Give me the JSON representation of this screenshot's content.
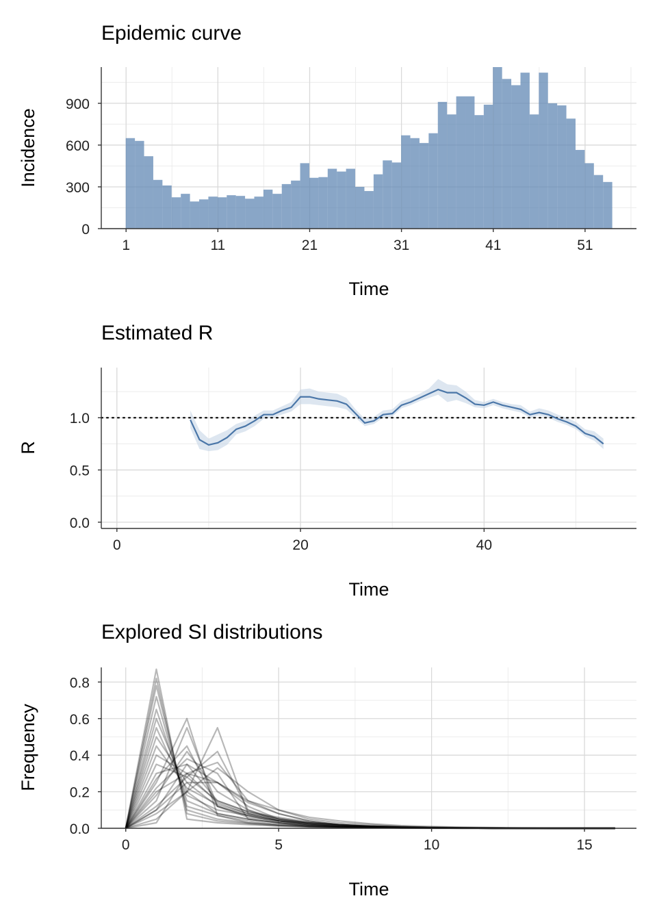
{
  "chart_data": [
    {
      "type": "bar",
      "title": "Epidemic curve",
      "xlabel": "Time",
      "ylabel": "Incidence",
      "x_ticks": [
        "1",
        "11",
        "21",
        "31",
        "41",
        "51"
      ],
      "y_ticks": [
        "0",
        "300",
        "600",
        "900"
      ],
      "ylim": [
        0,
        1160
      ],
      "xlim": [
        -1.7,
        56.6
      ],
      "bar_color": "#5b84b1",
      "x": [
        1,
        2,
        3,
        4,
        5,
        6,
        7,
        8,
        9,
        10,
        11,
        12,
        13,
        14,
        15,
        16,
        17,
        18,
        19,
        20,
        21,
        22,
        23,
        24,
        25,
        26,
        27,
        28,
        29,
        30,
        31,
        32,
        33,
        34,
        35,
        36,
        37,
        38,
        39,
        40,
        41,
        42,
        43,
        44,
        45,
        46,
        47,
        48,
        49,
        50,
        51,
        52,
        53,
        54
      ],
      "values": [
        650,
        630,
        520,
        350,
        310,
        225,
        250,
        195,
        210,
        230,
        225,
        240,
        235,
        215,
        230,
        280,
        250,
        320,
        345,
        470,
        365,
        370,
        430,
        410,
        430,
        300,
        270,
        390,
        490,
        475,
        670,
        650,
        615,
        685,
        910,
        820,
        950,
        950,
        815,
        890,
        1165,
        1075,
        1030,
        1120,
        820,
        1120,
        900,
        885,
        790,
        565,
        470,
        385,
        335,
        0
      ]
    },
    {
      "type": "line",
      "title": "Estimated R",
      "xlabel": "Time",
      "ylabel": "R",
      "x_ticks": [
        "0",
        "20",
        "40"
      ],
      "y_ticks": [
        "0.0",
        "0.5",
        "1.0"
      ],
      "xlim": [
        -1.7,
        56.6
      ],
      "ylim": [
        -0.06,
        1.48
      ],
      "reference_line": 1.0,
      "line_color": "#4a76a8",
      "band_color": "#c7d6e6",
      "series": [
        {
          "x": [
            8,
            9,
            10,
            11,
            12,
            13,
            14,
            15,
            16,
            17,
            18,
            19,
            20,
            21,
            22,
            23,
            24,
            25,
            26,
            27,
            28,
            29,
            30,
            31,
            32,
            33,
            34,
            35,
            36,
            37,
            38,
            39,
            40,
            41,
            42,
            43,
            44,
            45,
            46,
            47,
            48,
            49,
            50,
            51,
            52,
            53
          ],
          "mean": [
            0.98,
            0.79,
            0.74,
            0.76,
            0.81,
            0.89,
            0.92,
            0.97,
            1.03,
            1.03,
            1.07,
            1.1,
            1.2,
            1.2,
            1.18,
            1.17,
            1.16,
            1.13,
            1.04,
            0.95,
            0.97,
            1.03,
            1.04,
            1.12,
            1.15,
            1.19,
            1.23,
            1.27,
            1.24,
            1.24,
            1.19,
            1.13,
            1.12,
            1.15,
            1.12,
            1.1,
            1.08,
            1.03,
            1.05,
            1.03,
            0.99,
            0.96,
            0.92,
            0.85,
            0.82,
            0.75
          ],
          "lower": [
            0.9,
            0.7,
            0.68,
            0.69,
            0.74,
            0.84,
            0.87,
            0.92,
            0.99,
            1.0,
            1.03,
            1.06,
            1.13,
            1.13,
            1.12,
            1.11,
            1.1,
            1.08,
            1.0,
            0.92,
            0.94,
            1.0,
            1.01,
            1.09,
            1.12,
            1.16,
            1.19,
            1.22,
            1.15,
            1.17,
            1.14,
            1.1,
            1.09,
            1.12,
            1.09,
            1.07,
            1.05,
            1.0,
            1.02,
            1.0,
            0.96,
            0.93,
            0.89,
            0.82,
            0.78,
            0.7
          ],
          "upper": [
            1.07,
            0.88,
            0.8,
            0.84,
            0.88,
            0.94,
            0.97,
            1.02,
            1.07,
            1.07,
            1.11,
            1.15,
            1.27,
            1.28,
            1.25,
            1.24,
            1.23,
            1.19,
            1.08,
            0.99,
            1.01,
            1.07,
            1.08,
            1.16,
            1.19,
            1.23,
            1.28,
            1.37,
            1.32,
            1.31,
            1.25,
            1.17,
            1.15,
            1.18,
            1.15,
            1.13,
            1.12,
            1.06,
            1.09,
            1.07,
            1.03,
            1.0,
            0.96,
            0.89,
            0.87,
            0.8
          ]
        }
      ]
    },
    {
      "type": "line",
      "title": "Explored SI distributions",
      "xlabel": "Time",
      "ylabel": "Frequency",
      "x_ticks": [
        "0",
        "5",
        "10",
        "15"
      ],
      "y_ticks": [
        "0.0",
        "0.2",
        "0.4",
        "0.6",
        "0.8"
      ],
      "xlim": [
        -0.8,
        16.7
      ],
      "ylim": [
        0,
        0.88
      ],
      "x": [
        0,
        1,
        2,
        3,
        4,
        5,
        6,
        7,
        8,
        9,
        10,
        11,
        12,
        13,
        14,
        15,
        16
      ],
      "line_color": "#000000",
      "series": [
        {
          "values": [
            0,
            0.87,
            0.05,
            0.03,
            0.02,
            0.012,
            0.008,
            0.005,
            0.003,
            0.002,
            0.001,
            0.001,
            0,
            0,
            0,
            0,
            0
          ]
        },
        {
          "values": [
            0,
            0.78,
            0.1,
            0.05,
            0.03,
            0.015,
            0.01,
            0.006,
            0.004,
            0.002,
            0.001,
            0.001,
            0,
            0,
            0,
            0,
            0
          ]
        },
        {
          "values": [
            0,
            0.65,
            0.15,
            0.08,
            0.05,
            0.03,
            0.018,
            0.01,
            0.006,
            0.004,
            0.002,
            0.001,
            0.001,
            0,
            0,
            0,
            0
          ]
        },
        {
          "values": [
            0,
            0.55,
            0.18,
            0.1,
            0.07,
            0.045,
            0.025,
            0.015,
            0.01,
            0.006,
            0.004,
            0.002,
            0.001,
            0,
            0,
            0,
            0
          ]
        },
        {
          "values": [
            0,
            0.45,
            0.22,
            0.13,
            0.08,
            0.055,
            0.03,
            0.018,
            0.012,
            0.007,
            0.004,
            0.002,
            0.001,
            0.001,
            0,
            0,
            0
          ]
        },
        {
          "values": [
            0,
            0.35,
            0.28,
            0.15,
            0.09,
            0.06,
            0.035,
            0.02,
            0.013,
            0.008,
            0.005,
            0.003,
            0.002,
            0.001,
            0,
            0,
            0
          ]
        },
        {
          "values": [
            0,
            0.25,
            0.6,
            0.07,
            0.03,
            0.02,
            0.01,
            0.008,
            0.005,
            0.003,
            0.002,
            0.001,
            0,
            0,
            0,
            0,
            0
          ]
        },
        {
          "values": [
            0,
            0.15,
            0.55,
            0.12,
            0.06,
            0.04,
            0.03,
            0.02,
            0.012,
            0.008,
            0.005,
            0.003,
            0.002,
            0.001,
            0,
            0,
            0
          ]
        },
        {
          "values": [
            0,
            0.3,
            0.35,
            0.15,
            0.09,
            0.05,
            0.03,
            0.015,
            0.008,
            0.004,
            0.002,
            0.001,
            0,
            0,
            0,
            0,
            0
          ]
        },
        {
          "values": [
            0,
            0.08,
            0.2,
            0.55,
            0.08,
            0.04,
            0.02,
            0.01,
            0.005,
            0.003,
            0.002,
            0.001,
            0,
            0,
            0,
            0,
            0
          ]
        },
        {
          "values": [
            0,
            0.12,
            0.28,
            0.42,
            0.1,
            0.04,
            0.02,
            0.01,
            0.006,
            0.003,
            0.002,
            0.001,
            0,
            0,
            0,
            0,
            0
          ]
        },
        {
          "values": [
            0,
            0.2,
            0.3,
            0.25,
            0.12,
            0.05,
            0.03,
            0.02,
            0.012,
            0.008,
            0.005,
            0.003,
            0.002,
            0.001,
            0,
            0,
            0
          ]
        },
        {
          "values": [
            0,
            0.1,
            0.35,
            0.25,
            0.14,
            0.08,
            0.04,
            0.02,
            0.01,
            0.005,
            0.003,
            0.002,
            0.001,
            0,
            0,
            0,
            0
          ]
        },
        {
          "values": [
            0,
            0.05,
            0.2,
            0.33,
            0.2,
            0.1,
            0.05,
            0.03,
            0.02,
            0.01,
            0.005,
            0.003,
            0.002,
            0.001,
            0,
            0,
            0
          ]
        },
        {
          "values": [
            0,
            0.1,
            0.25,
            0.25,
            0.15,
            0.1,
            0.06,
            0.04,
            0.025,
            0.015,
            0.01,
            0.006,
            0.004,
            0.002,
            0.001,
            0.001,
            0
          ]
        },
        {
          "values": [
            0,
            0.6,
            0.2,
            0.08,
            0.05,
            0.03,
            0.015,
            0.01,
            0.006,
            0.004,
            0.002,
            0.001,
            0,
            0,
            0,
            0,
            0
          ]
        },
        {
          "values": [
            0,
            0.72,
            0.12,
            0.07,
            0.04,
            0.02,
            0.012,
            0.007,
            0.004,
            0.002,
            0.001,
            0,
            0,
            0,
            0,
            0,
            0
          ]
        },
        {
          "values": [
            0,
            0.4,
            0.3,
            0.14,
            0.08,
            0.04,
            0.02,
            0.01,
            0.006,
            0.003,
            0.002,
            0.001,
            0,
            0,
            0,
            0,
            0
          ]
        },
        {
          "values": [
            0,
            0.18,
            0.42,
            0.2,
            0.1,
            0.05,
            0.025,
            0.012,
            0.006,
            0.003,
            0.002,
            0.001,
            0,
            0,
            0,
            0,
            0
          ]
        },
        {
          "values": [
            0,
            0.22,
            0.38,
            0.3,
            0.05,
            0.03,
            0.01,
            0.005,
            0.003,
            0.001,
            0,
            0,
            0,
            0,
            0,
            0,
            0
          ]
        },
        {
          "values": [
            0,
            0.5,
            0.25,
            0.12,
            0.07,
            0.03,
            0.015,
            0.008,
            0.004,
            0.002,
            0.001,
            0,
            0,
            0,
            0,
            0,
            0
          ]
        },
        {
          "values": [
            0,
            0.82,
            0.08,
            0.04,
            0.025,
            0.015,
            0.008,
            0.005,
            0.003,
            0.002,
            0.001,
            0,
            0,
            0,
            0,
            0,
            0
          ]
        },
        {
          "values": [
            0,
            0.03,
            0.3,
            0.36,
            0.15,
            0.08,
            0.04,
            0.02,
            0.01,
            0.005,
            0.002,
            0.001,
            0,
            0,
            0,
            0,
            0
          ]
        },
        {
          "values": [
            0,
            0.27,
            0.45,
            0.12,
            0.07,
            0.04,
            0.025,
            0.015,
            0.008,
            0.004,
            0.002,
            0.001,
            0,
            0,
            0,
            0,
            0
          ]
        }
      ]
    }
  ]
}
